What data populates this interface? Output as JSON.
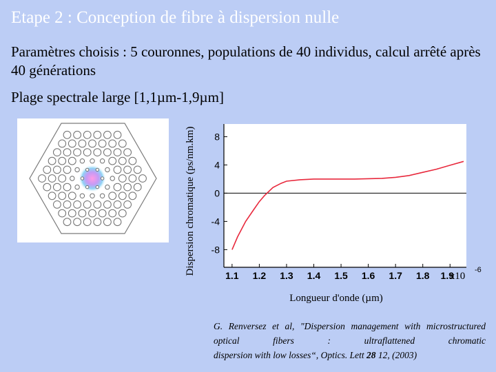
{
  "slide": {
    "title": "Etape 2 : Conception de fibre à dispersion nulle",
    "params_text": "Paramètres choisis : 5 couronnes, populations de 40 individus, calcul arrêté après 40 générations",
    "range_text": "Plage spectrale large [1,1µm-1,9µm]",
    "reference": {
      "line1": "G. Renversez et al, \"Dispersion management with microstructured optical fibers : ultraflattened chromatic",
      "line2_prefix": "dispersion with low losses“, Optics. Lett ",
      "volume": "28",
      "line2_suffix": " 12, (2003)"
    }
  },
  "chart_data": {
    "type": "line",
    "xlabel": "Longueur d'onde (µm)",
    "ylabel": "Dispersion chromatique (ps/nm.km)",
    "xticks": [
      "1.1",
      "1.2",
      "1.3",
      "1.4",
      "1.5",
      "1.6",
      "1.7",
      "1.8",
      "1.9"
    ],
    "x_exponent_label": "x10",
    "x_exponent": "-6",
    "yticks": [
      "8",
      "4",
      "0",
      "-4",
      "-8"
    ],
    "xlim": [
      1.07,
      1.96
    ],
    "ylim": [
      -10.5,
      9.8
    ],
    "line_color": "#e8283c",
    "series": [
      {
        "x": [
          1.1,
          1.12,
          1.15,
          1.18,
          1.2,
          1.22,
          1.25,
          1.28,
          1.3,
          1.35,
          1.4,
          1.45,
          1.5,
          1.55,
          1.6,
          1.65,
          1.7,
          1.75,
          1.8,
          1.85,
          1.9,
          1.95
        ],
        "y": [
          -8.0,
          -6.2,
          -4.0,
          -2.3,
          -1.2,
          -0.3,
          0.8,
          1.4,
          1.7,
          1.9,
          2.0,
          2.0,
          2.0,
          2.0,
          2.05,
          2.1,
          2.25,
          2.5,
          2.95,
          3.4,
          3.95,
          4.5
        ]
      }
    ]
  }
}
